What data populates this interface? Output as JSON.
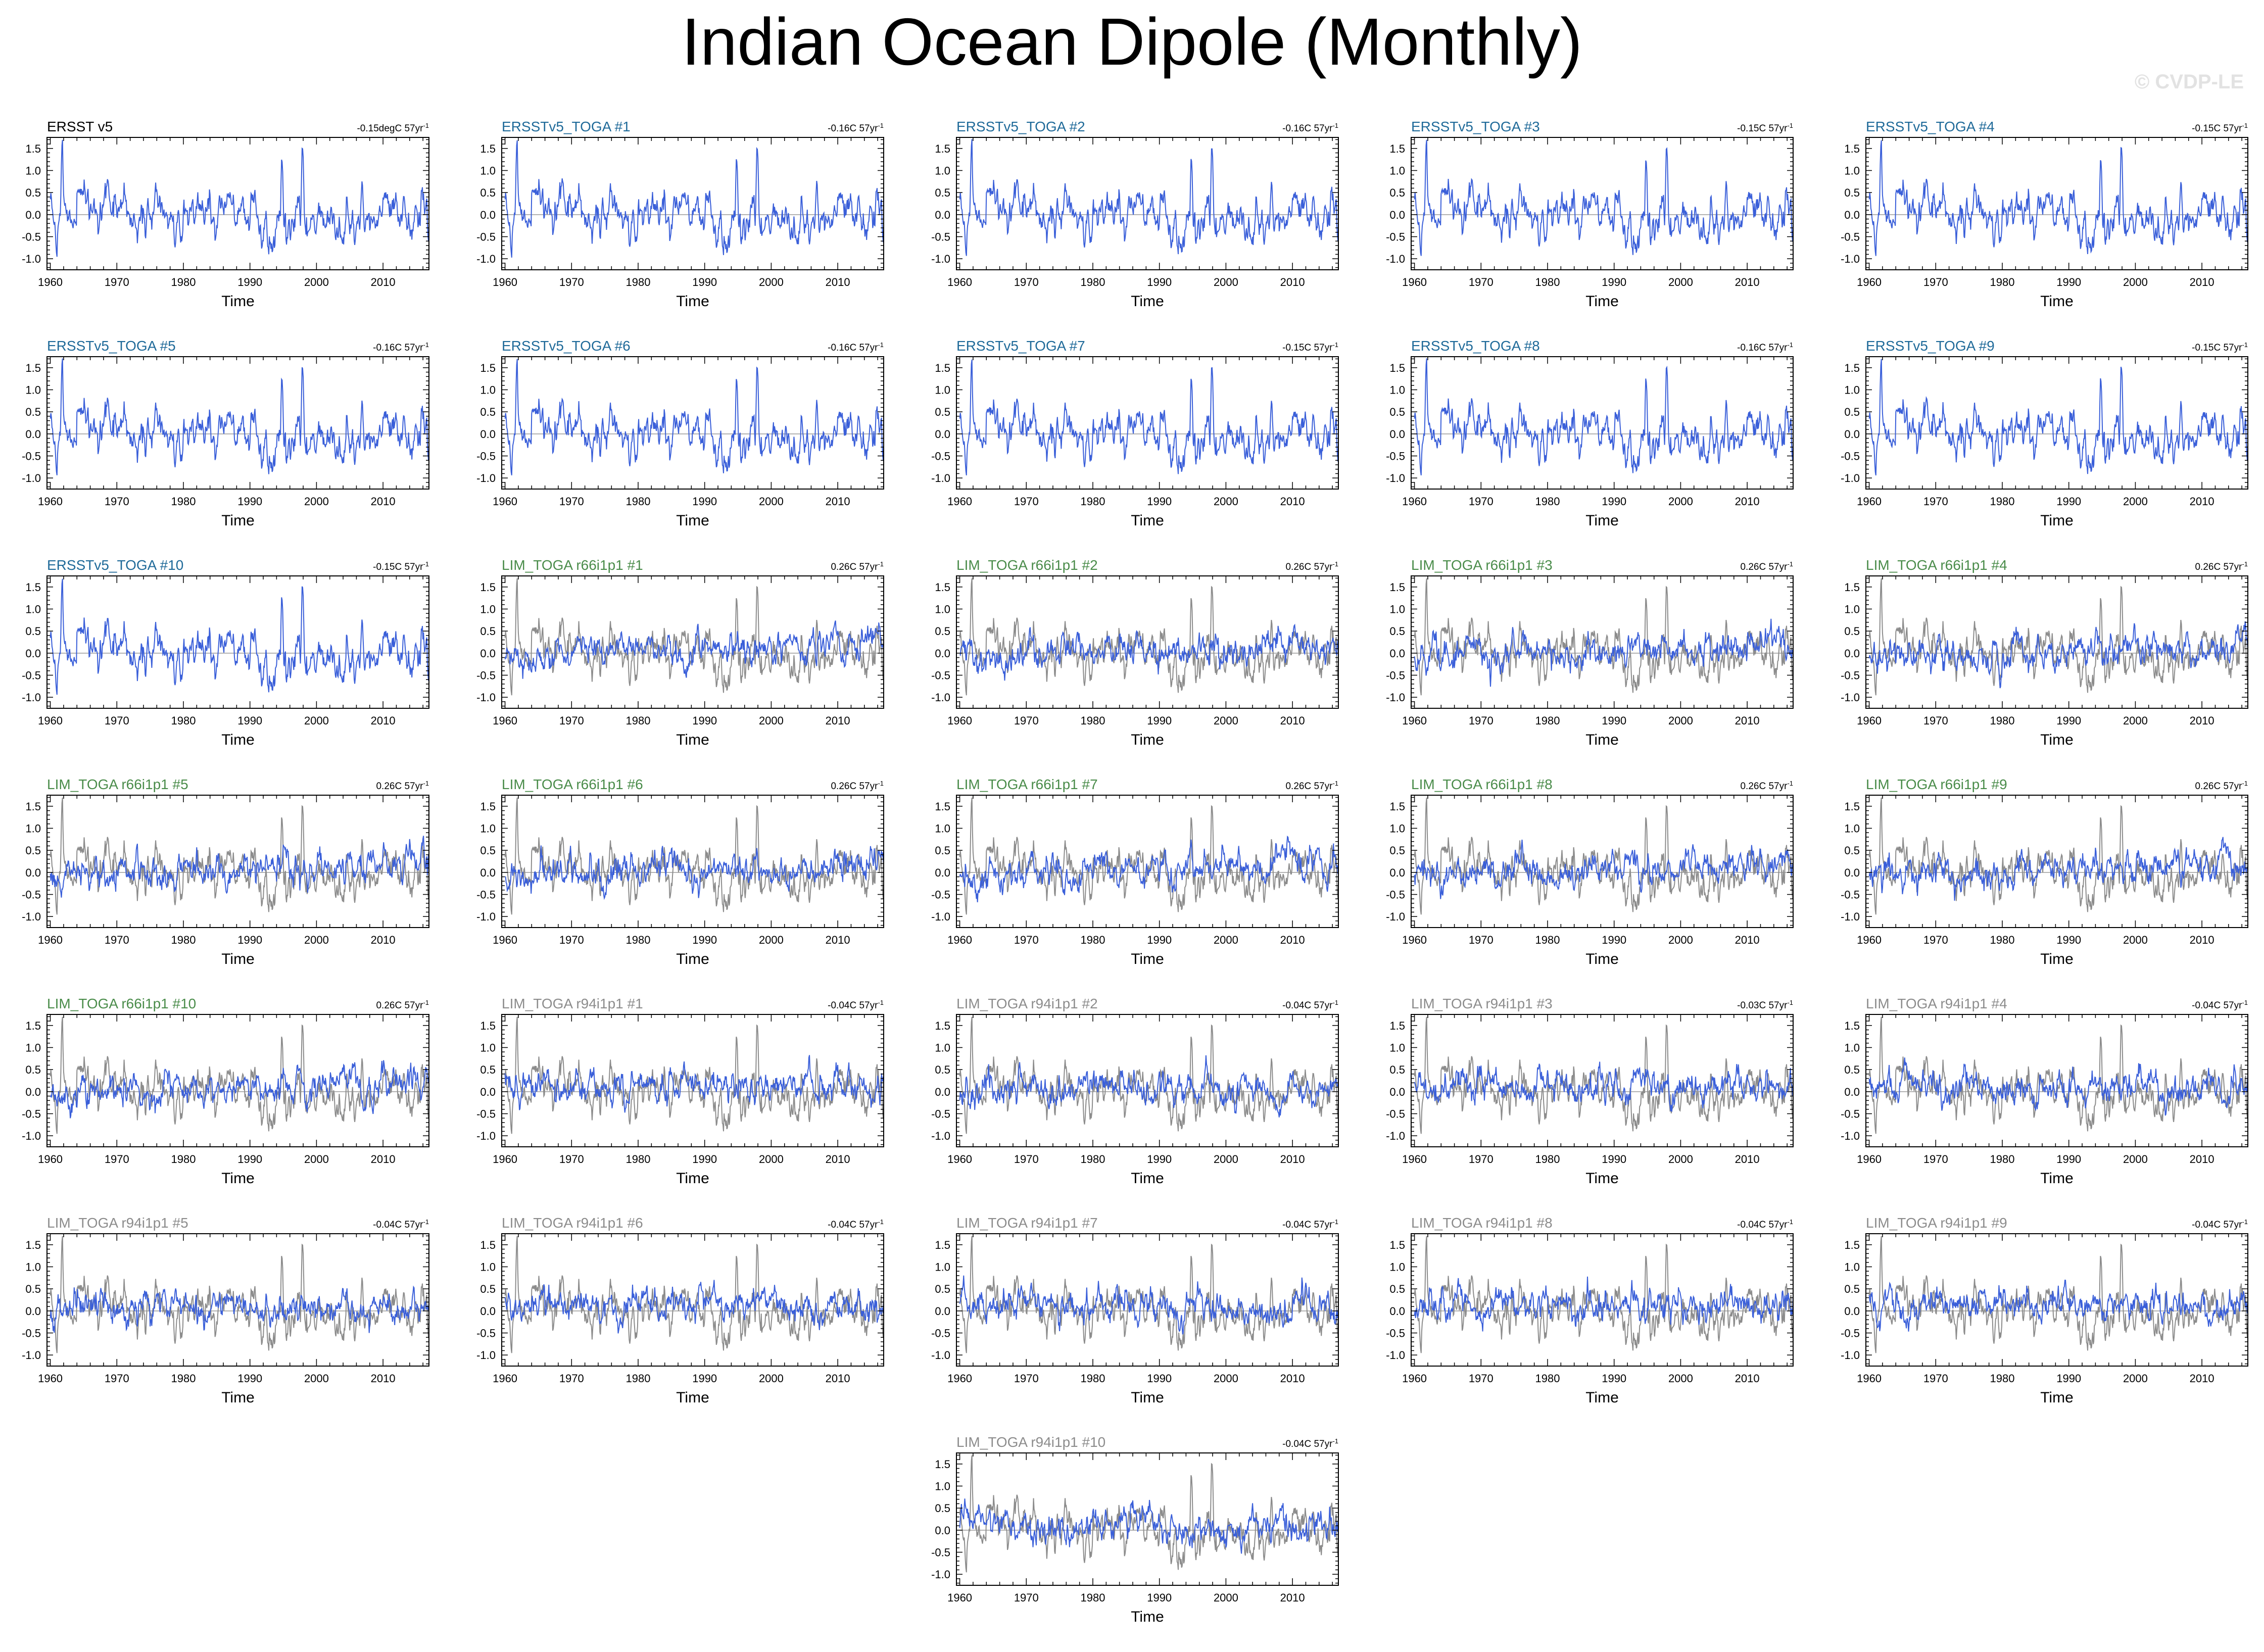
{
  "title": "Indian Ocean Dipole (Monthly)",
  "watermark": "© CVDP-LE",
  "colors": {
    "ensemble_line": "#3a5fd9",
    "observed_line": "#8c8c8c",
    "zero_line": "#9a9a9a",
    "title_ersst": "#000000",
    "title_ersst_toga": "#1f6a99",
    "title_lim_r66": "#4a8c4a",
    "title_lim_r94": "#8c8c8c"
  },
  "chart_data": {
    "type": "line",
    "xlabel": "Time",
    "ylabel": "",
    "xlim": [
      1959.5,
      2016.9
    ],
    "ylim": [
      -1.25,
      1.75
    ],
    "xticks": [
      "1960",
      "1970",
      "1980",
      "1990",
      "2000",
      "2010"
    ],
    "yticks": [
      "1.5",
      "1.0",
      "0.5",
      "0.0",
      "-0.5",
      "-1.0"
    ],
    "reference_series_note": "ERSST v5 observed index drawn in grey behind LIM_TOGA members",
    "observed_key_events": [
      {
        "year": 1961.8,
        "value": 1.4
      },
      {
        "year": 1994.8,
        "value": 1.55
      },
      {
        "year": 1997.9,
        "value": 1.6
      },
      {
        "year": 2006.8,
        "value": 0.9
      },
      {
        "year": 2015.9,
        "value": 0.8
      },
      {
        "year": 1960.9,
        "value": -1.05
      },
      {
        "year": 1992.8,
        "value": -1.0
      },
      {
        "year": 2016.8,
        "value": -1.1
      }
    ],
    "panels": [
      {
        "title": "ERSST v5",
        "trend": "-0.15degC 57yr",
        "group": "ersst",
        "style": "obs"
      },
      {
        "title": "ERSSTv5_TOGA #1",
        "trend": "-0.16C 57yr",
        "group": "ersst_toga",
        "style": "obs"
      },
      {
        "title": "ERSSTv5_TOGA #2",
        "trend": "-0.16C 57yr",
        "group": "ersst_toga",
        "style": "obs"
      },
      {
        "title": "ERSSTv5_TOGA #3",
        "trend": "-0.15C 57yr",
        "group": "ersst_toga",
        "style": "obs"
      },
      {
        "title": "ERSSTv5_TOGA #4",
        "trend": "-0.15C 57yr",
        "group": "ersst_toga",
        "style": "obs"
      },
      {
        "title": "ERSSTv5_TOGA #5",
        "trend": "-0.16C 57yr",
        "group": "ersst_toga",
        "style": "obs"
      },
      {
        "title": "ERSSTv5_TOGA #6",
        "trend": "-0.16C 57yr",
        "group": "ersst_toga",
        "style": "obs"
      },
      {
        "title": "ERSSTv5_TOGA #7",
        "trend": "-0.15C 57yr",
        "group": "ersst_toga",
        "style": "obs"
      },
      {
        "title": "ERSSTv5_TOGA #8",
        "trend": "-0.16C 57yr",
        "group": "ersst_toga",
        "style": "obs"
      },
      {
        "title": "ERSSTv5_TOGA #9",
        "trend": "-0.15C 57yr",
        "group": "ersst_toga",
        "style": "obs"
      },
      {
        "title": "ERSSTv5_TOGA #10",
        "trend": "-0.15C 57yr",
        "group": "ersst_toga",
        "style": "obs"
      },
      {
        "title": "LIM_TOGA r66i1p1 #1",
        "trend": "0.26C 57yr",
        "group": "lim_r66",
        "style": "lim66"
      },
      {
        "title": "LIM_TOGA r66i1p1 #2",
        "trend": "0.26C 57yr",
        "group": "lim_r66",
        "style": "lim66"
      },
      {
        "title": "LIM_TOGA r66i1p1 #3",
        "trend": "0.26C 57yr",
        "group": "lim_r66",
        "style": "lim66"
      },
      {
        "title": "LIM_TOGA r66i1p1 #4",
        "trend": "0.26C 57yr",
        "group": "lim_r66",
        "style": "lim66"
      },
      {
        "title": "LIM_TOGA r66i1p1 #5",
        "trend": "0.26C 57yr",
        "group": "lim_r66",
        "style": "lim66"
      },
      {
        "title": "LIM_TOGA r66i1p1 #6",
        "trend": "0.26C 57yr",
        "group": "lim_r66",
        "style": "lim66"
      },
      {
        "title": "LIM_TOGA r66i1p1 #7",
        "trend": "0.26C 57yr",
        "group": "lim_r66",
        "style": "lim66"
      },
      {
        "title": "LIM_TOGA r66i1p1 #8",
        "trend": "0.26C 57yr",
        "group": "lim_r66",
        "style": "lim66"
      },
      {
        "title": "LIM_TOGA r66i1p1 #9",
        "trend": "0.26C 57yr",
        "group": "lim_r66",
        "style": "lim66"
      },
      {
        "title": "LIM_TOGA r66i1p1 #10",
        "trend": "0.26C 57yr",
        "group": "lim_r66",
        "style": "lim66"
      },
      {
        "title": "LIM_TOGA r94i1p1 #1",
        "trend": "-0.04C 57yr",
        "group": "lim_r94",
        "style": "lim94"
      },
      {
        "title": "LIM_TOGA r94i1p1 #2",
        "trend": "-0.04C 57yr",
        "group": "lim_r94",
        "style": "lim94"
      },
      {
        "title": "LIM_TOGA r94i1p1 #3",
        "trend": "-0.03C 57yr",
        "group": "lim_r94",
        "style": "lim94"
      },
      {
        "title": "LIM_TOGA r94i1p1 #4",
        "trend": "-0.04C 57yr",
        "group": "lim_r94",
        "style": "lim94"
      },
      {
        "title": "LIM_TOGA r94i1p1 #5",
        "trend": "-0.04C 57yr",
        "group": "lim_r94",
        "style": "lim94"
      },
      {
        "title": "LIM_TOGA r94i1p1 #6",
        "trend": "-0.04C 57yr",
        "group": "lim_r94",
        "style": "lim94"
      },
      {
        "title": "LIM_TOGA r94i1p1 #7",
        "trend": "-0.04C 57yr",
        "group": "lim_r94",
        "style": "lim94"
      },
      {
        "title": "LIM_TOGA r94i1p1 #8",
        "trend": "-0.04C 57yr",
        "group": "lim_r94",
        "style": "lim94"
      },
      {
        "title": "LIM_TOGA r94i1p1 #9",
        "trend": "-0.04C 57yr",
        "group": "lim_r94",
        "style": "lim94"
      },
      {
        "title": "LIM_TOGA r94i1p1 #10",
        "trend": "-0.04C 57yr",
        "group": "lim_r94",
        "style": "lim94"
      }
    ]
  }
}
